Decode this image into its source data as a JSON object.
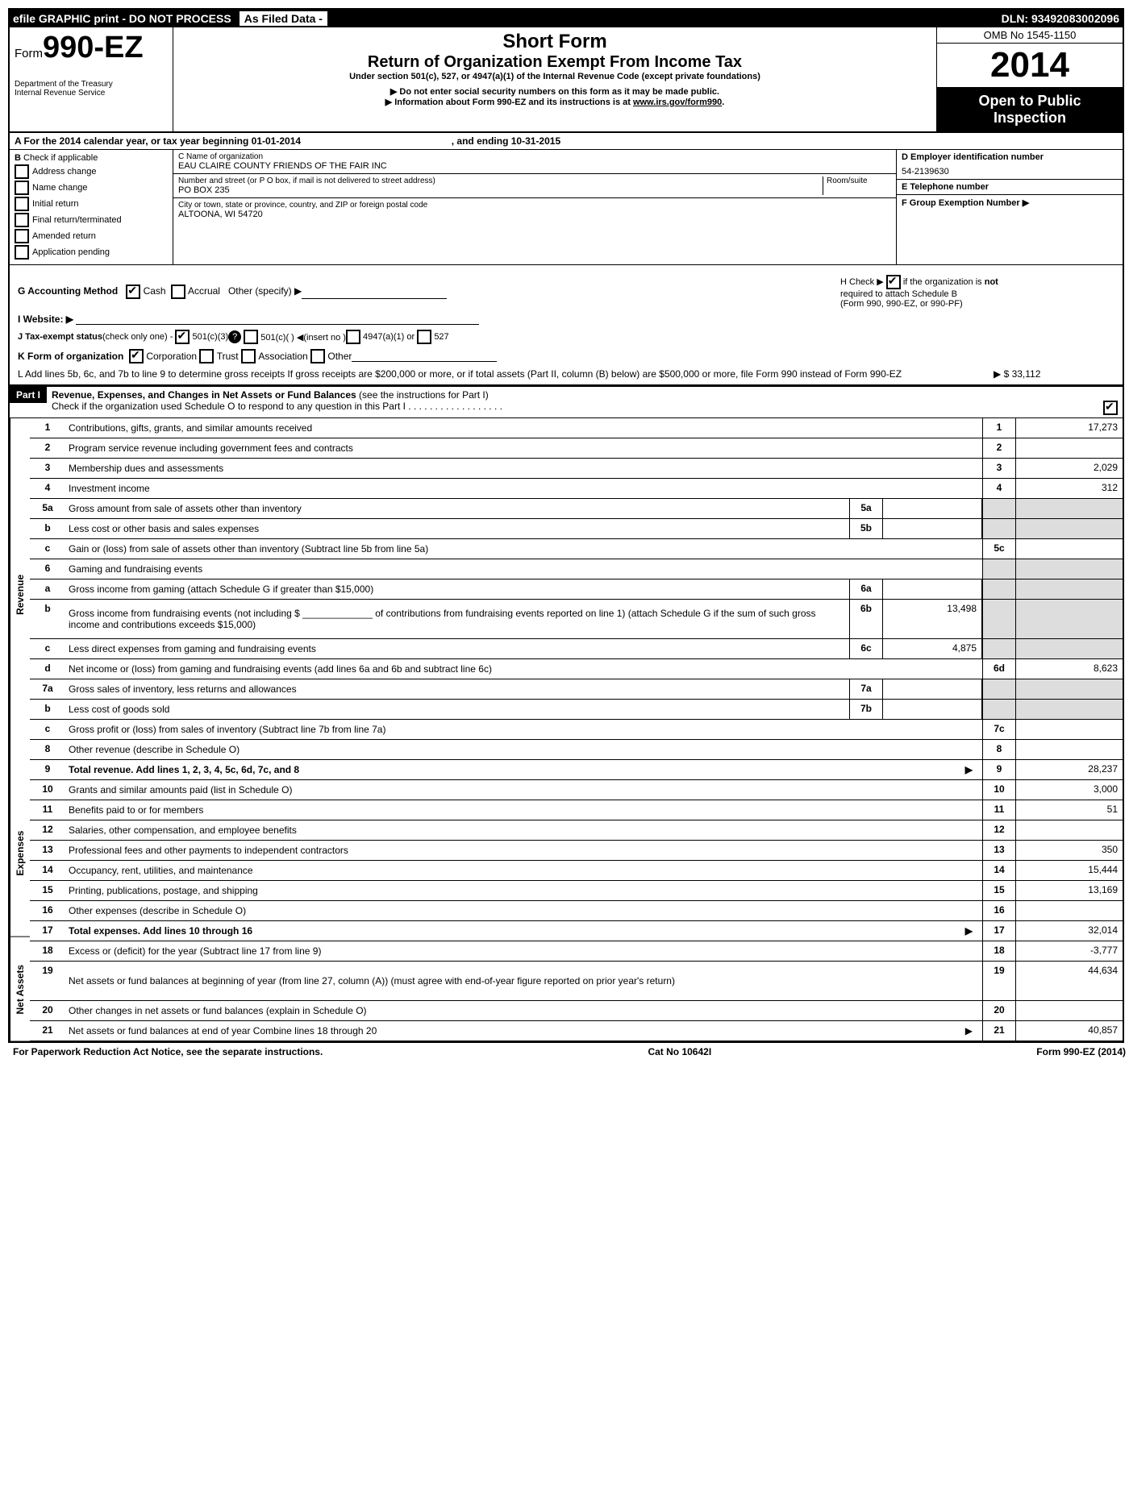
{
  "topbar": {
    "efile": "efile GRAPHIC print - DO NOT PROCESS",
    "asfiled": "As Filed Data -",
    "dln": "DLN: 93492083002096"
  },
  "header": {
    "form_prefix": "Form",
    "form_num": "990-EZ",
    "dept1": "Department of the Treasury",
    "dept2": "Internal Revenue Service",
    "short_form": "Short Form",
    "return_title": "Return of Organization Exempt From Income Tax",
    "under": "Under section 501(c), 527, or 4947(a)(1) of the Internal Revenue Code (except private foundations)",
    "ssn": "▶ Do not enter social security numbers on this form as it may be made public.",
    "info": "▶ Information about Form 990-EZ and its instructions is at ",
    "info_link": "www.irs.gov/form990",
    "info_period": ".",
    "omb": "OMB No 1545-1150",
    "year": "2014",
    "open1": "Open to Public",
    "open2": "Inspection"
  },
  "rowA": {
    "text_a": "A  For the 2014 calendar year, or tax year beginning 01-01-2014",
    "text_b": ", and ending 10-31-2015"
  },
  "checksB": {
    "label": "B",
    "sub": "Check if applicable",
    "items": [
      "Address change",
      "Name change",
      "Initial return",
      "Final return/terminated",
      "Amended return",
      "Application pending"
    ]
  },
  "org": {
    "c_label": "C Name of organization",
    "c_val": "EAU CLAIRE COUNTY FRIENDS OF THE FAIR INC",
    "street_label": "Number and street (or P O box, if mail is not delivered to street address)",
    "room_label": "Room/suite",
    "street_val": "PO BOX 235",
    "city_label": "City or town, state or province, country, and ZIP or foreign postal code",
    "city_val": "ALTOONA, WI  54720"
  },
  "ein": {
    "d_label": "D Employer identification number",
    "d_val": "54-2139630",
    "e_label": "E Telephone number",
    "f_label": "F Group Exemption Number  ▶"
  },
  "sectionG": {
    "g_label": "G Accounting Method",
    "g_cash": "Cash",
    "g_accrual": "Accrual",
    "g_other": "Other (specify) ▶",
    "h_text1": "H  Check ▶",
    "h_text2": "if the organization is ",
    "h_not": "not",
    "h_text3": "required to attach Schedule B",
    "h_text4": "(Form 990, 990-EZ, or 990-PF)",
    "i_label": "I Website: ▶",
    "j_label": "J Tax-exempt status",
    "j_sub": "(check only one) -",
    "j_opts": [
      "501(c)(3)",
      "501(c)(  )  ◀(insert no )",
      "4947(a)(1) or",
      "527"
    ],
    "k_label": "K Form of organization",
    "k_opts": [
      "Corporation",
      "Trust",
      "Association",
      "Other"
    ],
    "l_text": "L Add lines 5b, 6c, and 7b to line 9 to determine gross receipts  If gross receipts are $200,000 or more, or if total assets (Part II, column (B) below) are $500,000 or more, file Form 990 instead of Form 990-EZ",
    "l_val": "▶ $ 33,112"
  },
  "part1": {
    "tag": "Part I",
    "title": "Revenue, Expenses, and Changes in Net Assets or Fund Balances",
    "title_sub": "(see the instructions for Part I)",
    "check_line": "Check if the organization used Schedule O to respond to any question in this Part I  .  .  .  .  .  .  .  .  .  .  .  .  .  .  .  .  .  ."
  },
  "sections": {
    "revenue": "Revenue",
    "expenses": "Expenses",
    "netassets": "Net Assets"
  },
  "lines": [
    {
      "n": "1",
      "desc": "Contributions, gifts, grants, and similar amounts received",
      "en": "1",
      "ev": "17,273",
      "sec": "revenue"
    },
    {
      "n": "2",
      "desc": "Program service revenue including government fees and contracts",
      "en": "2",
      "ev": "",
      "sec": "revenue"
    },
    {
      "n": "3",
      "desc": "Membership dues and assessments",
      "en": "3",
      "ev": "2,029",
      "sec": "revenue"
    },
    {
      "n": "4",
      "desc": "Investment income",
      "en": "4",
      "ev": "312",
      "sec": "revenue"
    },
    {
      "n": "5a",
      "desc": "Gross amount from sale of assets other than inventory",
      "mb": "5a",
      "mv": "",
      "gray": true,
      "sec": "revenue"
    },
    {
      "n": "b",
      "desc": "Less  cost or other basis and sales expenses",
      "mb": "5b",
      "mv": "",
      "gray": true,
      "sec": "revenue"
    },
    {
      "n": "c",
      "desc": "Gain or (loss) from sale of assets other than inventory (Subtract line 5b from line 5a)",
      "en": "5c",
      "ev": "",
      "sec": "revenue"
    },
    {
      "n": "6",
      "desc": "Gaming and fundraising events",
      "graywide": true,
      "sec": "revenue"
    },
    {
      "n": "a",
      "desc": "Gross income from gaming (attach Schedule G if greater than $15,000)",
      "mb": "6a",
      "mv": "",
      "gray": true,
      "sep": "·",
      "sec": "revenue"
    },
    {
      "n": "b",
      "desc": "Gross income from fundraising events (not including $ _____________ of contributions from fundraising events reported on line 1) (attach Schedule G if the sum of such gross income and contributions exceeds $15,000)",
      "mb": "6b",
      "mv": "13,498",
      "gray": true,
      "sec": "revenue",
      "tall": true
    },
    {
      "n": "c",
      "desc": "Less  direct expenses from gaming and fundraising events",
      "mb": "6c",
      "mv": "4,875",
      "gray": true,
      "sec": "revenue"
    },
    {
      "n": "d",
      "desc": "Net income or (loss) from gaming and fundraising events (add lines 6a and 6b and subtract line 6c)",
      "en": "6d",
      "ev": "8,623",
      "sec": "revenue"
    },
    {
      "n": "7a",
      "desc": "Gross sales of inventory, less returns and allowances",
      "mb": "7a",
      "mv": "",
      "gray": true,
      "sec": "revenue"
    },
    {
      "n": "b",
      "desc": "Less  cost of goods sold",
      "mb": "7b",
      "mv": "",
      "gray": true,
      "sec": "revenue"
    },
    {
      "n": "c",
      "desc": "Gross profit or (loss) from sales of inventory (Subtract line 7b from line 7a)",
      "en": "7c",
      "ev": "",
      "sec": "revenue"
    },
    {
      "n": "8",
      "desc": "Other revenue (describe in Schedule O)",
      "en": "8",
      "ev": "",
      "sec": "revenue"
    },
    {
      "n": "9",
      "desc": "Total revenue. Add lines 1, 2, 3, 4, 5c, 6d, 7c, and 8",
      "en": "9",
      "ev": "28,237",
      "bold": true,
      "arrow": true,
      "sec": "revenue"
    },
    {
      "n": "10",
      "desc": "Grants and similar amounts paid (list in Schedule O)",
      "en": "10",
      "ev": "3,000",
      "sec": "expenses"
    },
    {
      "n": "11",
      "desc": "Benefits paid to or for members",
      "en": "11",
      "ev": "51",
      "sec": "expenses"
    },
    {
      "n": "12",
      "desc": "Salaries, other compensation, and employee benefits",
      "en": "12",
      "ev": "",
      "sec": "expenses"
    },
    {
      "n": "13",
      "desc": "Professional fees and other payments to independent contractors",
      "en": "13",
      "ev": "350",
      "sec": "expenses"
    },
    {
      "n": "14",
      "desc": "Occupancy, rent, utilities, and maintenance",
      "en": "14",
      "ev": "15,444",
      "sec": "expenses"
    },
    {
      "n": "15",
      "desc": "Printing, publications, postage, and shipping",
      "en": "15",
      "ev": "13,169",
      "sec": "expenses"
    },
    {
      "n": "16",
      "desc": "Other expenses (describe in Schedule O)",
      "en": "16",
      "ev": "",
      "sec": "expenses"
    },
    {
      "n": "17",
      "desc": "Total expenses. Add lines 10 through 16",
      "en": "17",
      "ev": "32,014",
      "bold": true,
      "arrow": true,
      "sec": "expenses"
    },
    {
      "n": "18",
      "desc": "Excess or (deficit) for the year (Subtract line 17 from line 9)",
      "en": "18",
      "ev": "-3,777",
      "sec": "netassets"
    },
    {
      "n": "19",
      "desc": "Net assets or fund balances at beginning of year (from line 27, column (A)) (must agree with end-of-year figure reported on prior year's return)",
      "en": "19",
      "ev": "44,634",
      "sec": "netassets",
      "tall": true
    },
    {
      "n": "20",
      "desc": "Other changes in net assets or fund balances (explain in Schedule O)",
      "en": "20",
      "ev": "",
      "sec": "netassets"
    },
    {
      "n": "21",
      "desc": "Net assets or fund balances at end of year  Combine lines 18 through 20",
      "en": "21",
      "ev": "40,857",
      "arrow": true,
      "sec": "netassets"
    }
  ],
  "footer": {
    "left": "For Paperwork Reduction Act Notice, see the separate instructions.",
    "mid": "Cat No  10642I",
    "right": "Form 990-EZ (2014)"
  }
}
